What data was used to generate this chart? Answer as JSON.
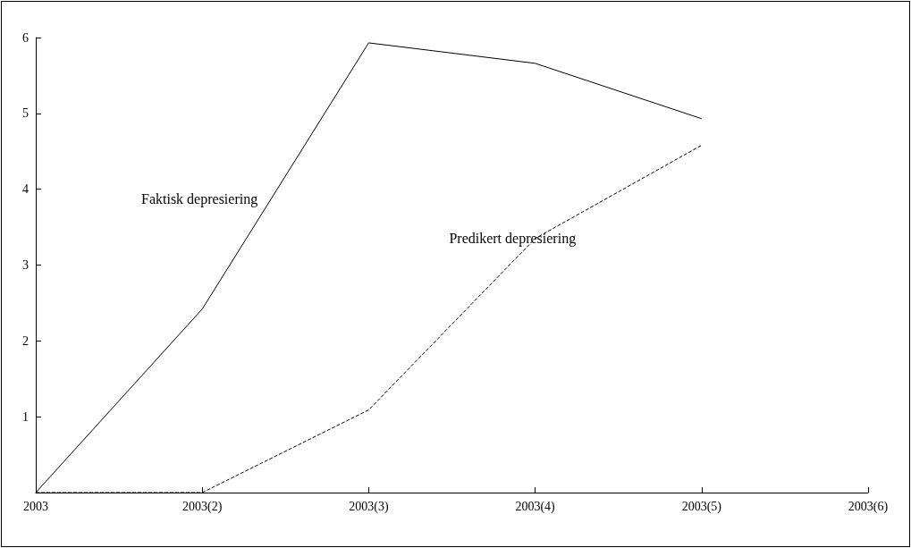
{
  "chart_data": {
    "type": "line",
    "categories": [
      "2003",
      "2003(2)",
      "2003(3)",
      "2003(4)",
      "2003(5)",
      "2003(6)"
    ],
    "series": [
      {
        "name": "Faktisk depresiering",
        "color": "#000000",
        "line_style": "solid",
        "values": [
          0,
          2.42,
          5.93,
          5.66,
          4.93,
          null
        ]
      },
      {
        "name": "Predikert depresiering",
        "color": "#000000",
        "line_style": "dashed",
        "values": [
          0,
          0,
          1.09,
          3.35,
          4.58,
          null
        ]
      }
    ],
    "ylim": [
      0,
      6
    ],
    "yticks": [
      {
        "value": 0,
        "label": null
      },
      1,
      2,
      3,
      4,
      5,
      6
    ],
    "grid": false,
    "marker": "none"
  }
}
